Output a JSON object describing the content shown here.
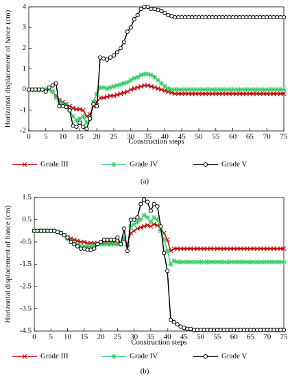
{
  "chart_data": [
    {
      "type": "line",
      "caption": "(a)",
      "xlabel": "Construction steps",
      "ylabel": "Horizontal displacement of hance (cm)",
      "x": [
        0,
        1,
        2,
        3,
        4,
        5,
        6,
        7,
        8,
        9,
        10,
        11,
        12,
        13,
        14,
        15,
        16,
        17,
        18,
        19,
        20,
        21,
        22,
        23,
        24,
        25,
        26,
        27,
        28,
        29,
        30,
        31,
        32,
        33,
        34,
        35,
        36,
        37,
        38,
        39,
        40,
        41,
        42,
        43,
        44,
        45,
        46,
        47,
        48,
        49,
        50,
        51,
        52,
        53,
        54,
        55,
        56,
        57,
        58,
        59,
        60,
        61,
        62,
        63,
        64,
        65,
        66,
        67,
        68,
        69,
        70,
        71,
        72,
        73,
        74,
        75
      ],
      "xlim": [
        0,
        75
      ],
      "xticks": [
        0,
        5,
        10,
        15,
        20,
        25,
        30,
        35,
        40,
        45,
        50,
        55,
        60,
        65,
        70,
        75
      ],
      "ylim": [
        -2,
        4
      ],
      "yticks": [
        -2,
        -1,
        0,
        1,
        2,
        3,
        4
      ],
      "series": [
        {
          "name": "Grade III",
          "color": "#c00000",
          "marker": "x",
          "values": [
            0,
            0,
            0,
            0,
            0,
            0,
            0,
            -0.1,
            -0.3,
            -0.5,
            -0.6,
            -0.7,
            -0.8,
            -0.9,
            -0.95,
            -0.95,
            -1.0,
            -1.3,
            -1.2,
            -0.8,
            -0.6,
            -0.4,
            -0.4,
            -0.35,
            -0.3,
            -0.3,
            -0.25,
            -0.2,
            -0.15,
            -0.1,
            0,
            0.05,
            0.1,
            0.15,
            0.2,
            0.2,
            0.15,
            0.1,
            0.05,
            0,
            -0.05,
            -0.1,
            -0.15,
            -0.2,
            -0.2,
            -0.2,
            -0.2,
            -0.2,
            -0.2,
            -0.2,
            -0.2,
            -0.2,
            -0.2,
            -0.2,
            -0.2,
            -0.2,
            -0.2,
            -0.2,
            -0.2,
            -0.2,
            -0.2,
            -0.2,
            -0.2,
            -0.2,
            -0.2,
            -0.2,
            -0.2,
            -0.2,
            -0.2,
            -0.2,
            -0.2,
            -0.2,
            -0.2,
            -0.2,
            -0.2,
            -0.2
          ]
        },
        {
          "name": "Grade IV",
          "color": "#33cc66",
          "marker": "star",
          "values": [
            0,
            0,
            0,
            0,
            0,
            0,
            0,
            -0.1,
            -0.4,
            -0.6,
            -0.7,
            -0.8,
            -1.0,
            -1.3,
            -1.5,
            -1.4,
            -1.3,
            -1.6,
            -1.4,
            -0.6,
            -0.2,
            0.1,
            0.1,
            0.05,
            0.1,
            0.15,
            0.2,
            0.25,
            0.3,
            0.35,
            0.45,
            0.55,
            0.6,
            0.7,
            0.75,
            0.75,
            0.7,
            0.6,
            0.45,
            0.3,
            0.15,
            0.05,
            0,
            0,
            0,
            0,
            0,
            0,
            0,
            0,
            0,
            0,
            0,
            0,
            0,
            0,
            0,
            0,
            0,
            0,
            0,
            0,
            0,
            0,
            0,
            0,
            0,
            0,
            0,
            0,
            0,
            0,
            0,
            0,
            0,
            0
          ]
        },
        {
          "name": "Grade V",
          "color": "#000000",
          "marker": "circle",
          "values": [
            0,
            0,
            0,
            0,
            0,
            -0.1,
            0.1,
            0.2,
            0.3,
            -0.8,
            -0.8,
            -0.85,
            -1.0,
            -1.75,
            -1.8,
            -1.6,
            -1.8,
            -1.9,
            -1.4,
            -0.7,
            -0.8,
            1.55,
            1.5,
            1.45,
            1.55,
            1.65,
            1.8,
            2.0,
            2.3,
            2.8,
            3.0,
            3.4,
            3.6,
            3.9,
            4.0,
            4.0,
            3.9,
            3.9,
            3.85,
            3.8,
            3.7,
            3.6,
            3.55,
            3.5,
            3.5,
            3.5,
            3.5,
            3.5,
            3.5,
            3.5,
            3.5,
            3.5,
            3.5,
            3.5,
            3.5,
            3.5,
            3.5,
            3.5,
            3.5,
            3.5,
            3.5,
            3.5,
            3.5,
            3.5,
            3.5,
            3.5,
            3.5,
            3.5,
            3.5,
            3.5,
            3.5,
            3.5,
            3.5,
            3.5,
            3.5,
            3.5
          ]
        }
      ]
    },
    {
      "type": "line",
      "caption": "(b)",
      "xlabel": "Construction steps",
      "ylabel": "Horizontal displacement of hance (cm)",
      "x": [
        0,
        1,
        2,
        3,
        4,
        5,
        6,
        7,
        8,
        9,
        10,
        11,
        12,
        13,
        14,
        15,
        16,
        17,
        18,
        19,
        20,
        21,
        22,
        23,
        24,
        25,
        26,
        27,
        28,
        29,
        30,
        31,
        32,
        33,
        34,
        35,
        36,
        37,
        38,
        39,
        40,
        41,
        42,
        43,
        44,
        45,
        46,
        47,
        48,
        49,
        50,
        51,
        52,
        53,
        54,
        55,
        56,
        57,
        58,
        59,
        60,
        61,
        62,
        63,
        64,
        65,
        66,
        67,
        68,
        69,
        70,
        71,
        72,
        73,
        74,
        75
      ],
      "xlim": [
        0,
        75
      ],
      "xticks": [
        0,
        5,
        10,
        15,
        20,
        25,
        30,
        35,
        40,
        45,
        50,
        55,
        60,
        65,
        70,
        75
      ],
      "ylim": [
        -4.5,
        1.5
      ],
      "yticks": [
        1.5,
        0.5,
        -0.5,
        -1.5,
        -2.5,
        -3.5,
        -4.5
      ],
      "series": [
        {
          "name": "Grade III",
          "color": "#c00000",
          "marker": "x",
          "values": [
            0,
            0,
            0,
            0,
            0,
            0,
            0,
            -0.05,
            -0.1,
            -0.2,
            -0.3,
            -0.35,
            -0.4,
            -0.45,
            -0.5,
            -0.5,
            -0.55,
            -0.55,
            -0.55,
            -0.55,
            -0.55,
            -0.55,
            -0.55,
            -0.55,
            -0.55,
            -0.55,
            -0.55,
            -0.4,
            -0.6,
            -0.1,
            0,
            0.1,
            0.15,
            0.2,
            0.25,
            0.2,
            0.3,
            0.25,
            0.1,
            -0.1,
            -0.4,
            -0.9,
            -0.8,
            -0.8,
            -0.8,
            -0.8,
            -0.8,
            -0.8,
            -0.8,
            -0.8,
            -0.8,
            -0.8,
            -0.8,
            -0.8,
            -0.8,
            -0.8,
            -0.8,
            -0.8,
            -0.8,
            -0.8,
            -0.8,
            -0.8,
            -0.8,
            -0.8,
            -0.8,
            -0.8,
            -0.8,
            -0.8,
            -0.8,
            -0.8,
            -0.8,
            -0.8,
            -0.8,
            -0.8,
            -0.8,
            -0.8
          ]
        },
        {
          "name": "Grade IV",
          "color": "#33cc66",
          "marker": "star",
          "values": [
            0,
            0,
            0,
            0,
            0,
            0,
            0,
            -0.05,
            -0.1,
            -0.2,
            -0.35,
            -0.45,
            -0.55,
            -0.6,
            -0.7,
            -0.7,
            -0.7,
            -0.7,
            -0.65,
            -0.6,
            -0.6,
            -0.6,
            -0.6,
            -0.6,
            -0.6,
            -0.6,
            -0.6,
            -0.3,
            -0.7,
            0.2,
            0.3,
            0.4,
            0.5,
            0.7,
            0.6,
            0.4,
            0.6,
            0.5,
            0,
            -0.4,
            -0.9,
            -1.5,
            -1.35,
            -1.4,
            -1.4,
            -1.4,
            -1.4,
            -1.4,
            -1.4,
            -1.4,
            -1.4,
            -1.4,
            -1.4,
            -1.4,
            -1.4,
            -1.4,
            -1.4,
            -1.4,
            -1.4,
            -1.4,
            -1.4,
            -1.4,
            -1.4,
            -1.4,
            -1.4,
            -1.4,
            -1.4,
            -1.4,
            -1.4,
            -1.4,
            -1.4,
            -1.4,
            -1.4,
            -1.4,
            -1.4,
            -1.4
          ]
        },
        {
          "name": "Grade V",
          "color": "#000000",
          "marker": "circle",
          "values": [
            0,
            0,
            0,
            0,
            0,
            0,
            0,
            -0.05,
            -0.1,
            -0.2,
            -0.3,
            -0.5,
            -0.6,
            -0.7,
            -0.8,
            -0.8,
            -0.85,
            -0.85,
            -0.8,
            -0.6,
            -0.5,
            -0.4,
            -0.4,
            -0.4,
            -0.4,
            -0.3,
            -0.6,
            0.1,
            -0.9,
            0.5,
            0.5,
            0.6,
            1.2,
            1.4,
            1.3,
            0.9,
            1.2,
            1.1,
            0.2,
            -1.0,
            -1.8,
            -4.0,
            -4.1,
            -4.2,
            -4.3,
            -4.35,
            -4.4,
            -4.4,
            -4.45,
            -4.45,
            -4.45,
            -4.45,
            -4.45,
            -4.45,
            -4.45,
            -4.45,
            -4.45,
            -4.45,
            -4.45,
            -4.45,
            -4.45,
            -4.45,
            -4.45,
            -4.45,
            -4.45,
            -4.45,
            -4.45,
            -4.45,
            -4.45,
            -4.45,
            -4.45,
            -4.45,
            -4.45,
            -4.45,
            -4.45,
            -4.45
          ]
        }
      ]
    }
  ]
}
